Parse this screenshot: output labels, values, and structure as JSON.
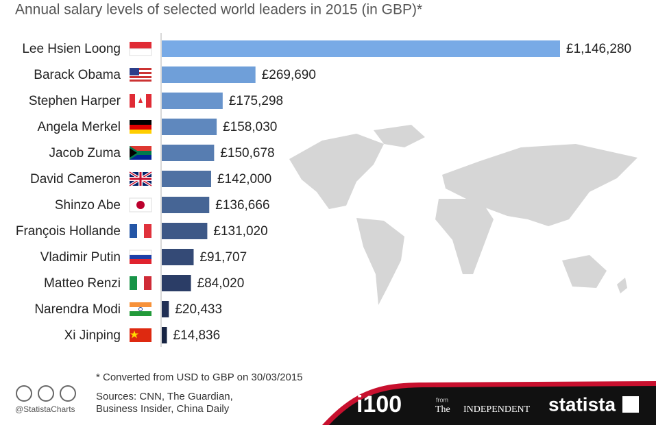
{
  "chart_data": {
    "type": "bar",
    "orientation": "horizontal",
    "title": "Annual salary levels of selected world leaders in 2015 (in GBP)*",
    "categories": [
      "Lee Hsien Loong",
      "Barack Obama",
      "Stephen Harper",
      "Angela Merkel",
      "Jacob Zuma",
      "David Cameron",
      "Shinzo Abe",
      "François Hollande",
      "Vladimir Putin",
      "Matteo Renzi",
      "Narendra Modi",
      "Xi Jinping"
    ],
    "values": [
      1146280,
      269690,
      175298,
      158030,
      150678,
      142000,
      136666,
      131020,
      91707,
      84020,
      20433,
      14836
    ],
    "value_labels": [
      "£1,146,280",
      "£269,690",
      "£175,298",
      "£158,030",
      "£150,678",
      "£142,000",
      "£136,666",
      "£131,020",
      "£91,707",
      "£84,020",
      "£20,433",
      "£14,836"
    ],
    "colors": [
      "#78aae6",
      "#6f9fd9",
      "#6894cc",
      "#5f88be",
      "#577db1",
      "#4f71a3",
      "#466595",
      "#3d5887",
      "#344a76",
      "#2b3d66",
      "#213055",
      "#172443"
    ],
    "note": "* Converted from USD to GBP on 30/03/2015",
    "sources": [
      "Sources: CNN, The Guardian,",
      "Business Insider, China Daily"
    ],
    "handle": "@StatistaCharts",
    "logos": {
      "i100": "i100",
      "from": "from",
      "the": "The",
      "independent": "INDEPENDENT",
      "statista": "statista"
    }
  }
}
